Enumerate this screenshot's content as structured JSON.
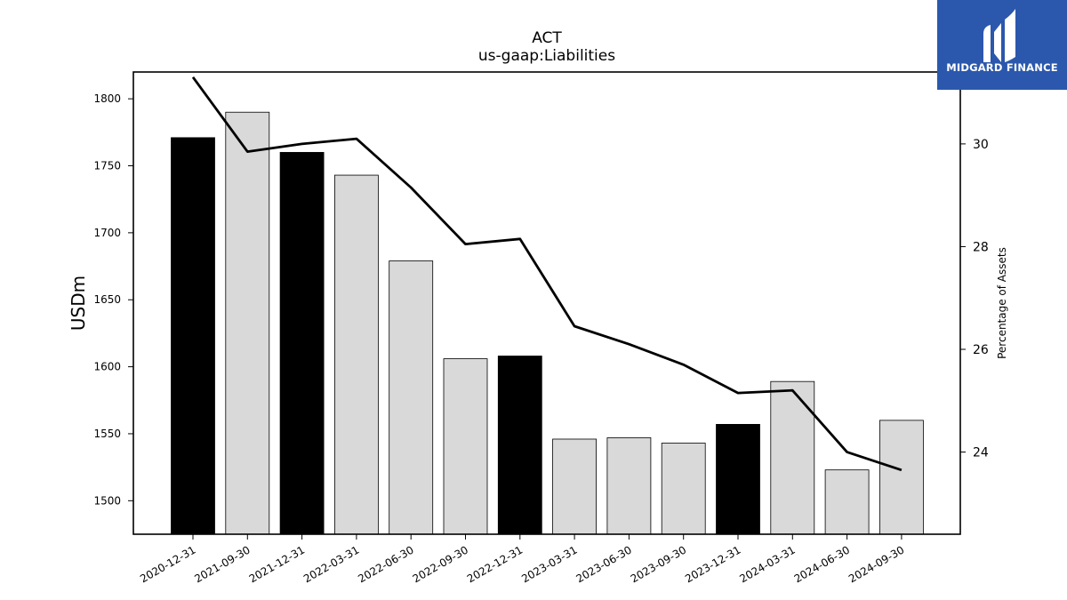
{
  "chart_data": {
    "type": "bar",
    "title": "ACT",
    "subtitle": "us-gaap:Liabilities",
    "ylabel": "USDm",
    "y2label": "Percentage of Assets",
    "categories": [
      "2020-12-31",
      "2021-09-30",
      "2021-12-31",
      "2022-03-31",
      "2022-06-30",
      "2022-09-30",
      "2022-12-31",
      "2023-03-31",
      "2023-06-30",
      "2023-09-30",
      "2023-12-31",
      "2024-03-31",
      "2024-06-30",
      "2024-09-30"
    ],
    "series": [
      {
        "type": "bar",
        "values": [
          1771,
          1790,
          1760,
          1743,
          1679,
          1606,
          1608,
          1546,
          1547,
          1543,
          1557,
          1589,
          1523,
          1560
        ],
        "colors": [
          "#000000",
          "#d9d9d9",
          "#000000",
          "#d9d9d9",
          "#d9d9d9",
          "#d9d9d9",
          "#000000",
          "#d9d9d9",
          "#d9d9d9",
          "#d9d9d9",
          "#000000",
          "#d9d9d9",
          "#d9d9d9",
          "#d9d9d9"
        ]
      },
      {
        "type": "line",
        "axis": "right",
        "color": "#000000",
        "values": [
          31.3,
          29.85,
          30.0,
          30.1,
          29.15,
          28.05,
          28.15,
          26.45,
          26.1,
          25.7,
          25.15,
          25.2,
          24.0,
          23.65
        ]
      }
    ],
    "ylim": [
      1475,
      1820
    ],
    "y2lim": [
      22.4,
      31.4
    ],
    "yticks": [
      1500,
      1550,
      1600,
      1650,
      1700,
      1750,
      1800
    ],
    "y2ticks": [
      24,
      26,
      28,
      30
    ],
    "grid": false,
    "legend": "none"
  },
  "logo": {
    "text": "MIDGARD FINANCE",
    "color": "#2b58ad"
  }
}
